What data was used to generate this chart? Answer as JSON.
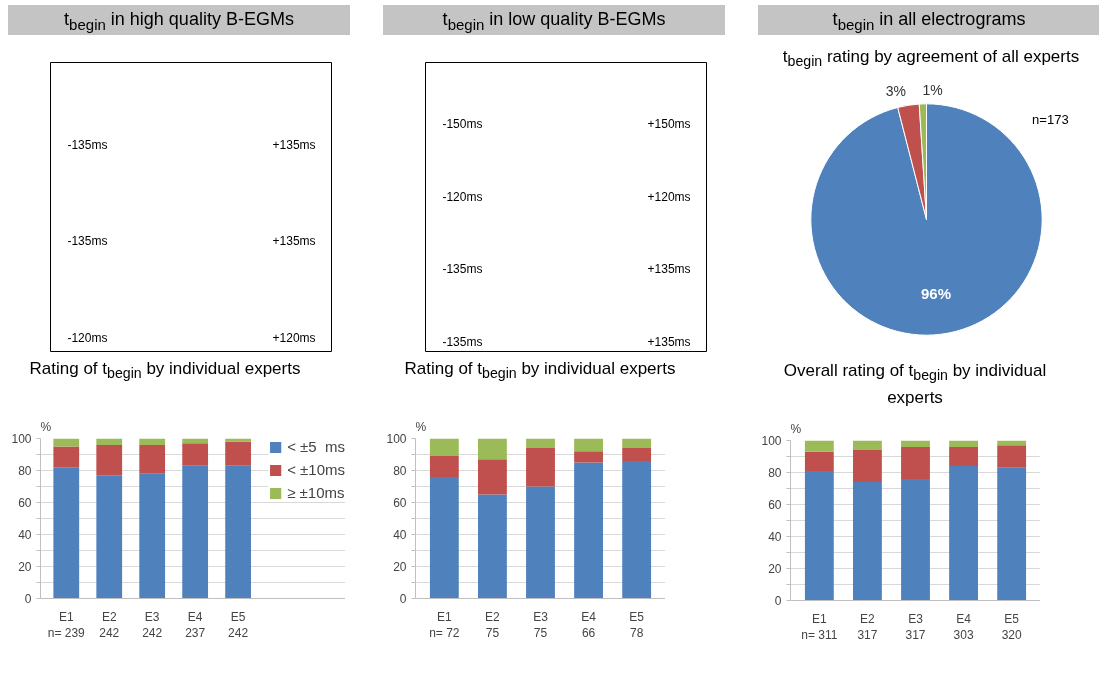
{
  "chart_data": [
    {
      "type": "other",
      "title": "t$_{begin}$ in high quality B-EGMs",
      "annotations": [
        "-135ms",
        "+135ms",
        "-135ms",
        "+135ms",
        "-120ms",
        "+120ms"
      ]
    },
    {
      "type": "other",
      "title": "t$_{begin}$ in low quality B-EGMs",
      "annotations": [
        "-150ms",
        "+150ms",
        "-120ms",
        "+120ms",
        "-135ms",
        "+135ms",
        "-135ms",
        "+135ms"
      ]
    },
    {
      "type": "pie",
      "title": "t$_{begin}$ in all electrograms",
      "subtitle": "t$_{begin}$ rating by agreement of all experts",
      "categories": [
        null,
        null,
        null
      ],
      "values": [
        96,
        3,
        1
      ],
      "colors": [
        "#4f81bd",
        "#c0504d",
        "#9bbb59"
      ],
      "value_labels": [
        "96%",
        "3%",
        "1%"
      ],
      "annotations": [
        "n=173"
      ]
    },
    {
      "type": "bar",
      "stacked": true,
      "title": "Rating of t$_{begin}$ by individual experts",
      "ylabel": "%",
      "categories": [
        "E1\nn= 239",
        "E2\n242",
        "E3\n242",
        "E4\n237",
        "E5\n242"
      ],
      "ylim": [
        0,
        100
      ],
      "yticks": [
        0,
        {
          "value": 10,
          "label": null
        },
        20,
        {
          "value": 30,
          "label": null
        },
        40,
        {
          "value": 50,
          "label": null
        },
        60,
        {
          "value": 70,
          "label": null
        },
        80,
        {
          "value": 90,
          "label": null
        },
        100
      ],
      "grid": "y",
      "legend": "right",
      "series": [
        {
          "name": "< ±5  ms",
          "color": "#4f81bd",
          "values": [
            82,
            77,
            78,
            83,
            83
          ]
        },
        {
          "name": "< ±10ms",
          "color": "#c0504d",
          "values": [
            13,
            19,
            18,
            14,
            15
          ]
        },
        {
          "name": "≥ ±10ms",
          "color": "#9bbb59",
          "values": [
            5,
            4,
            4,
            3,
            2
          ]
        }
      ]
    },
    {
      "type": "bar",
      "stacked": true,
      "title": "Rating of t$_{begin}$ by individual experts",
      "ylabel": "%",
      "categories": [
        "E1\nn= 72",
        "E2\n75",
        "E3\n75",
        "E4\n66",
        "E5\n78"
      ],
      "ylim": [
        0,
        100
      ],
      "yticks": [
        0,
        {
          "value": 10,
          "label": null
        },
        20,
        {
          "value": 30,
          "label": null
        },
        40,
        {
          "value": 50,
          "label": null
        },
        60,
        {
          "value": 70,
          "label": null
        },
        80,
        {
          "value": 90,
          "label": null
        },
        100
      ],
      "grid": "y",
      "series": [
        {
          "color": "#4f81bd",
          "values": [
            76,
            65,
            70,
            85,
            86
          ]
        },
        {
          "color": "#c0504d",
          "values": [
            13,
            22,
            24,
            7,
            8
          ]
        },
        {
          "color": "#9bbb59",
          "values": [
            11,
            13,
            6,
            8,
            6
          ]
        }
      ]
    },
    {
      "type": "bar",
      "stacked": true,
      "title": "Overall rating of t$_{begin}$ by individual experts",
      "ylabel": "%",
      "categories": [
        "E1\nn= 311",
        "E2\n317",
        "E3\n317",
        "E4\n303",
        "E5\n320"
      ],
      "ylim": [
        0,
        100
      ],
      "yticks": [
        0,
        {
          "value": 10,
          "label": null
        },
        20,
        {
          "value": 30,
          "label": null
        },
        40,
        {
          "value": 50,
          "label": null
        },
        60,
        {
          "value": 70,
          "label": null
        },
        80,
        {
          "value": 90,
          "label": null
        },
        100
      ],
      "grid": "y",
      "series": [
        {
          "color": "#4f81bd",
          "values": [
            81,
            74,
            76,
            84,
            83
          ]
        },
        {
          "color": "#c0504d",
          "values": [
            12,
            20,
            20,
            12,
            14
          ]
        },
        {
          "color": "#9bbb59",
          "values": [
            7,
            6,
            4,
            4,
            3
          ]
        }
      ]
    }
  ]
}
